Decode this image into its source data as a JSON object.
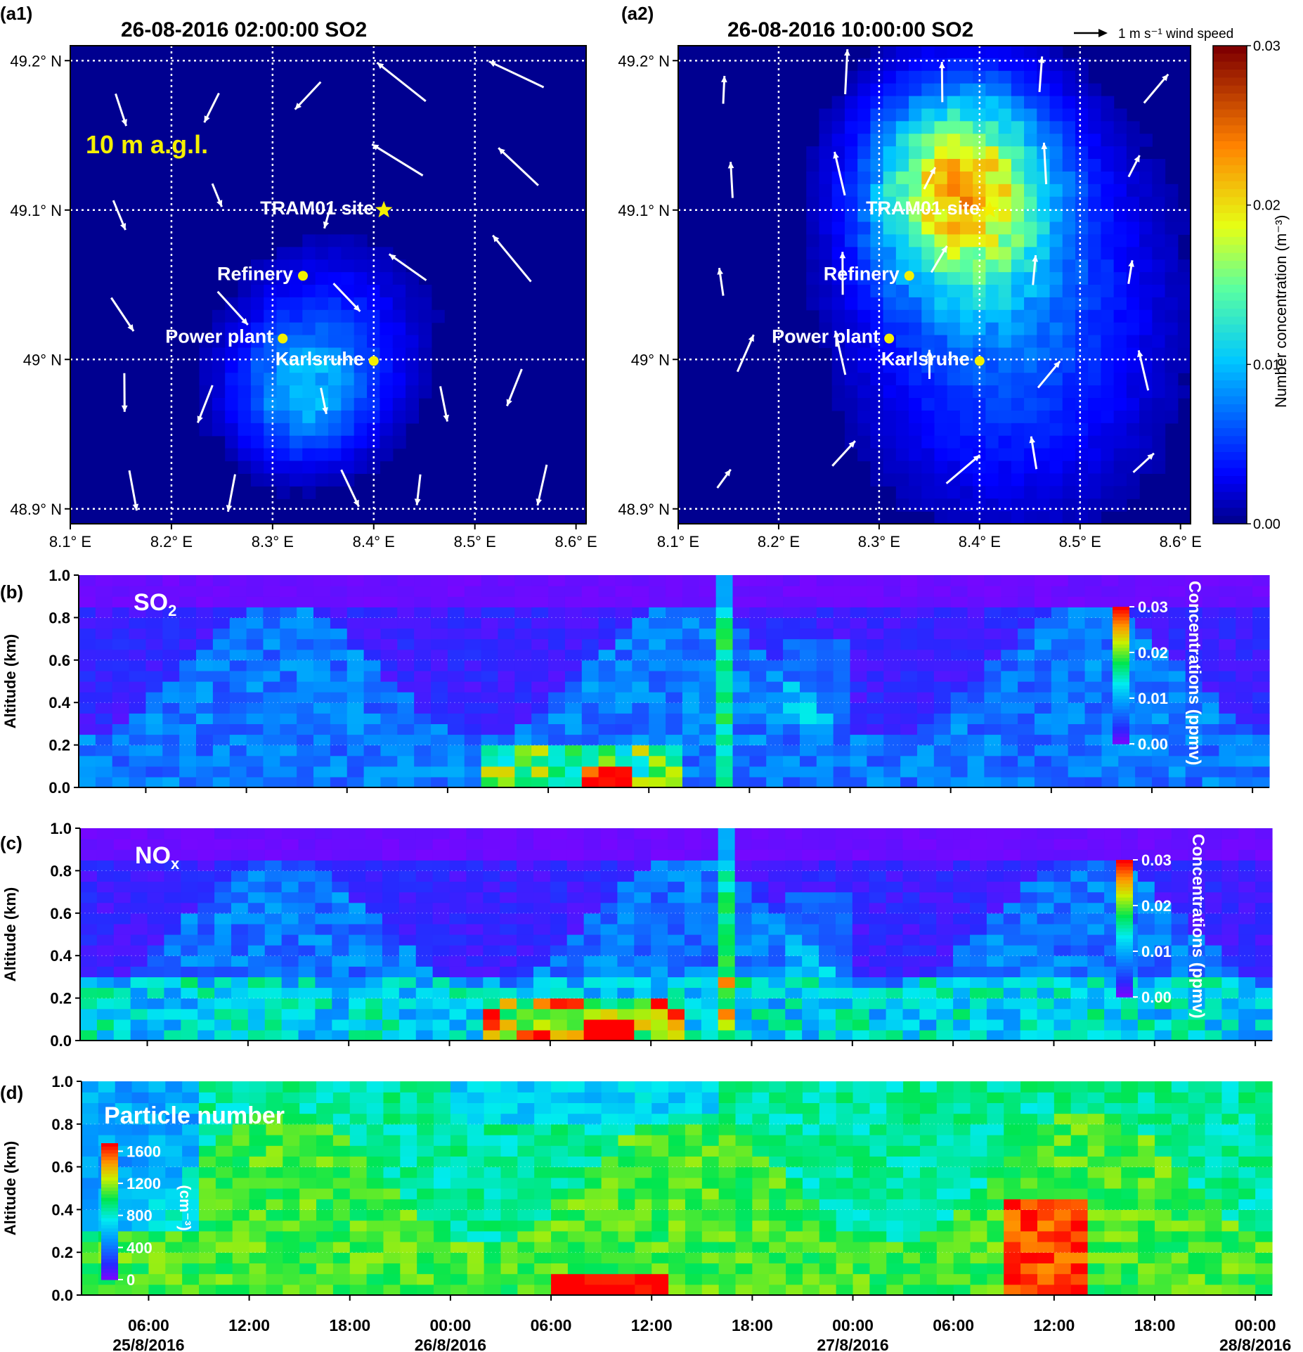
{
  "chart_data": [
    {
      "panel": "(a1)",
      "type": "heatmap",
      "title": "26-08-2016  02:00:00 SO2",
      "annotation": "10 m a.g.l.",
      "x_ticks": [
        "8.1° E",
        "8.2° E",
        "8.3° E",
        "8.4° E",
        "8.5° E",
        "8.6° E"
      ],
      "y_ticks": [
        "48.9° N",
        "49° N",
        "49.1° N",
        "49.2° N"
      ],
      "xlim": [
        8.1,
        8.61
      ],
      "ylim": [
        48.89,
        49.21
      ],
      "sites": [
        {
          "name": "TRAM01 site",
          "lon": 8.41,
          "lat": 49.1,
          "marker": "star"
        },
        {
          "name": "Refinery",
          "lon": 8.33,
          "lat": 49.056,
          "marker": "dot"
        },
        {
          "name": "Power plant",
          "lon": 8.31,
          "lat": 49.014,
          "marker": "dot"
        },
        {
          "name": "Karlsruhe",
          "lon": 8.4,
          "lat": 48.999,
          "marker": "dot"
        }
      ],
      "plume": {
        "lon": 8.33,
        "lat": 48.975,
        "peak": 0.008
      },
      "grid": true
    },
    {
      "panel": "(a2)",
      "type": "heatmap",
      "title": "26-08-2016  10:00:00 SO2",
      "wind_reference": "1 m s⁻¹ wind speed",
      "x_ticks": [
        "8.1° E",
        "8.2° E",
        "8.3° E",
        "8.4° E",
        "8.5° E",
        "8.6° E"
      ],
      "y_ticks": [
        "48.9° N",
        "49° N",
        "49.1° N",
        "49.2° N"
      ],
      "xlim": [
        8.1,
        8.61
      ],
      "ylim": [
        48.89,
        49.21
      ],
      "sites": [
        {
          "name": "TRAM01 site",
          "lon": 8.41,
          "lat": 49.1,
          "marker": "star"
        },
        {
          "name": "Refinery",
          "lon": 8.33,
          "lat": 49.056,
          "marker": "dot"
        },
        {
          "name": "Power plant",
          "lon": 8.31,
          "lat": 49.014,
          "marker": "dot"
        },
        {
          "name": "Karlsruhe",
          "lon": 8.4,
          "lat": 48.999,
          "marker": "dot"
        }
      ],
      "plume": {
        "lon": 8.38,
        "lat": 49.115,
        "peak": 0.019
      },
      "colorbar": {
        "label": "Number concentration (m⁻³)",
        "ticks": [
          "0.00",
          "0.01",
          "0.02",
          "0.03"
        ],
        "range": [
          0,
          0.03
        ]
      },
      "grid": true
    },
    {
      "panel": "(b)",
      "type": "heatmap",
      "label": "SO",
      "label_sub": "2",
      "ylabel": "Altitude (km)",
      "ylim": [
        0,
        1.0
      ],
      "y_ticks": [
        "0.0",
        "0.2",
        "0.4",
        "0.6",
        "0.8",
        "1.0"
      ],
      "colorbar": {
        "label": "Concentrations (ppmv)",
        "ticks": [
          "0.00",
          "0.01",
          "0.02",
          "0.03"
        ],
        "range": [
          0,
          0.03
        ]
      },
      "features": [
        {
          "time_h": 33,
          "alt_km": 0.08,
          "value": 0.024
        },
        {
          "time_h": 30,
          "alt_km": 0.15,
          "value": 0.012
        },
        {
          "time_h": 41,
          "alt_km": 0.5,
          "value": 0.009
        }
      ]
    },
    {
      "panel": "(c)",
      "type": "heatmap",
      "label": "NO",
      "label_sub": "x",
      "ylabel": "Altitude (km)",
      "ylim": [
        0,
        1.0
      ],
      "y_ticks": [
        "0.0",
        "0.2",
        "0.4",
        "0.6",
        "0.8",
        "1.0"
      ],
      "colorbar": {
        "label": "Concentrations (ppmv)",
        "ticks": [
          "0.00",
          "0.01",
          "0.02",
          "0.03"
        ],
        "range": [
          0,
          0.03
        ]
      },
      "features": [
        {
          "time_h": 34,
          "alt_km": 0.06,
          "value": 0.025
        },
        {
          "time_h": 31,
          "alt_km": 0.12,
          "value": 0.014
        },
        {
          "time_h": 41,
          "alt_km": 0.5,
          "value": 0.009
        }
      ]
    },
    {
      "panel": "(d)",
      "type": "heatmap",
      "label": "Particle number",
      "ylabel": "Altitude (km)",
      "ylim": [
        0,
        1.0
      ],
      "y_ticks": [
        "0.0",
        "0.2",
        "0.4",
        "0.6",
        "0.8",
        "1.0"
      ],
      "colorbar": {
        "label": "(cm⁻³)",
        "ticks": [
          "0",
          "400",
          "800",
          "1200",
          "1600"
        ],
        "range": [
          0,
          1700
        ]
      },
      "features": [
        {
          "time_h": 34,
          "alt_km": 0.06,
          "value": 1650
        },
        {
          "time_h": 60.5,
          "alt_km": 0.25,
          "value": 1400
        }
      ]
    }
  ],
  "time_axis": {
    "ticks": [
      {
        "label": "06:00",
        "date": "25/8/2016",
        "hour": 6
      },
      {
        "label": "12:00",
        "date": "",
        "hour": 12
      },
      {
        "label": "18:00",
        "date": "",
        "hour": 18
      },
      {
        "label": "00:00",
        "date": "26/8/2016",
        "hour": 24
      },
      {
        "label": "06:00",
        "date": "",
        "hour": 30
      },
      {
        "label": "12:00",
        "date": "",
        "hour": 36
      },
      {
        "label": "18:00",
        "date": "",
        "hour": 42
      },
      {
        "label": "00:00",
        "date": "27/8/2016",
        "hour": 48
      },
      {
        "label": "06:00",
        "date": "",
        "hour": 54
      },
      {
        "label": "12:00",
        "date": "",
        "hour": 60
      },
      {
        "label": "18:00",
        "date": "",
        "hour": 66
      },
      {
        "label": "00:00",
        "date": "28/8/2016",
        "hour": 72
      }
    ],
    "range_h": [
      2,
      73
    ]
  },
  "colors": {
    "map_bg": "#000090",
    "site_marker": "#f4f000",
    "annotation": "#f4f000",
    "label_white": "#ffffff"
  }
}
